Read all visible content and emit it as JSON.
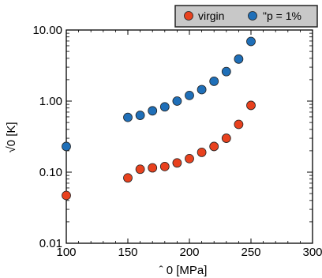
{
  "chart_data": {
    "type": "scatter",
    "xlabel": "ˆ 0 [MPa]",
    "ylabel": "√0 [K]",
    "xlim": [
      100,
      300
    ],
    "ylim": [
      0.01,
      10
    ],
    "y_scale": "log",
    "x_ticks": [
      "100",
      "150",
      "200",
      "250",
      "300"
    ],
    "y_ticks": [
      "0.01",
      "0.10",
      "1.00",
      "10.00"
    ],
    "grid": false,
    "legend_position": "top-right",
    "series": [
      {
        "name": "virgin",
        "color": "#e8411e",
        "x": [
          100,
          150,
          160,
          170,
          180,
          190,
          200,
          210,
          220,
          230,
          240,
          250
        ],
        "y": [
          0.047,
          0.083,
          0.11,
          0.115,
          0.12,
          0.135,
          0.155,
          0.19,
          0.23,
          0.3,
          0.47,
          0.87
        ]
      },
      {
        "name": "\"p = 1%",
        "color": "#1f6fb8",
        "x": [
          100,
          150,
          160,
          170,
          180,
          190,
          200,
          210,
          220,
          230,
          240,
          250
        ],
        "y": [
          0.23,
          0.59,
          0.63,
          0.73,
          0.83,
          1.0,
          1.2,
          1.45,
          1.9,
          2.6,
          3.9,
          6.9
        ]
      }
    ]
  }
}
